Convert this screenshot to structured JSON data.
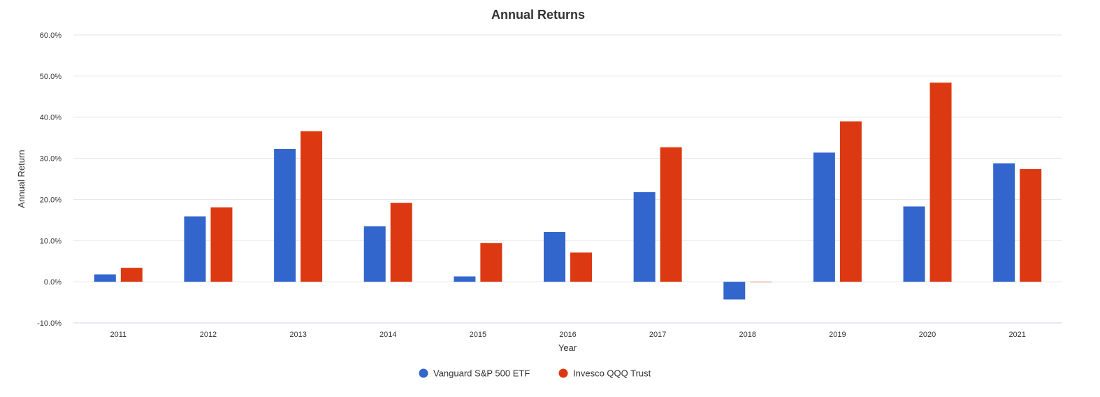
{
  "chart_data": {
    "type": "bar",
    "title": "Annual Returns",
    "xlabel": "Year",
    "ylabel": "Annual Return",
    "categories": [
      "2011",
      "2012",
      "2013",
      "2014",
      "2015",
      "2016",
      "2017",
      "2018",
      "2019",
      "2020",
      "2021"
    ],
    "series": [
      {
        "name": "Vanguard S&P 500 ETF",
        "color": "#3366cc",
        "values": [
          1.8,
          15.9,
          32.3,
          13.5,
          1.3,
          12.1,
          21.8,
          -4.3,
          31.4,
          18.3,
          28.8
        ]
      },
      {
        "name": "Invesco QQQ Trust",
        "color": "#dc3912",
        "values": [
          3.4,
          18.1,
          36.6,
          19.2,
          9.4,
          7.1,
          32.7,
          -0.1,
          39.0,
          48.4,
          27.4
        ]
      }
    ],
    "ylim": [
      -10,
      60
    ],
    "yticks": [
      -10,
      0,
      10,
      20,
      30,
      40,
      50,
      60
    ],
    "ytick_labels": [
      "-10.0%",
      "0.0%",
      "10.0%",
      "20.0%",
      "30.0%",
      "40.0%",
      "50.0%",
      "60.0%"
    ],
    "grid": true,
    "legend_position": "bottom"
  }
}
